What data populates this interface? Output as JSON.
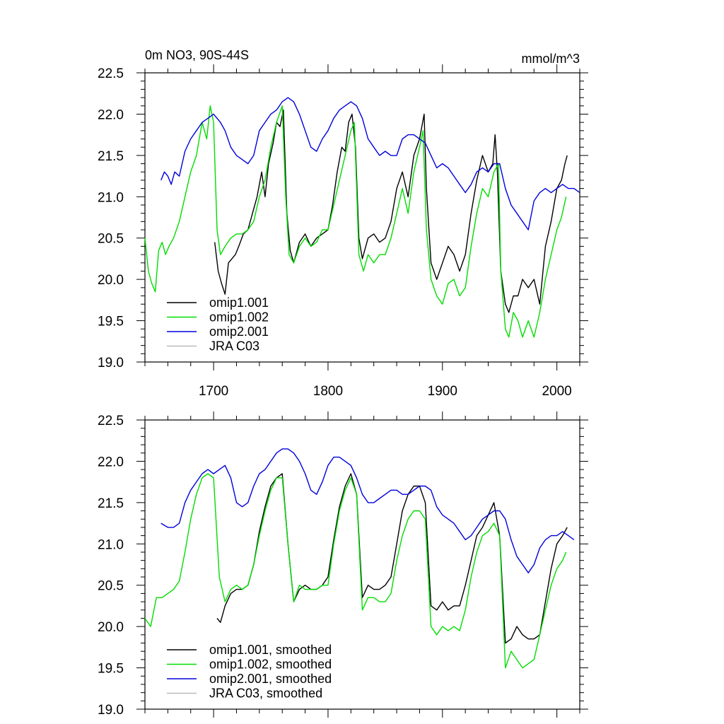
{
  "chart_data": [
    {
      "type": "line",
      "title": "0m NO3, 90S-44S",
      "title_right": "mmol/m^3",
      "xlim": [
        1640,
        2020
      ],
      "ylim": [
        19.0,
        22.5
      ],
      "xticks": [
        1700,
        1800,
        1900,
        2000
      ],
      "xtick_labels": [
        "1700",
        "1800",
        "1900",
        "2000"
      ],
      "yticks": [
        19.0,
        19.5,
        20.0,
        20.5,
        21.0,
        21.5,
        22.0,
        22.5
      ],
      "ytick_labels": [
        "19.0",
        "19.5",
        "20.0",
        "20.5",
        "21.0",
        "21.5",
        "22.0",
        "22.5"
      ],
      "legend_position": "bottom-left",
      "series": [
        {
          "name": "omip1.001",
          "color": "#000000",
          "x": [
            1701,
            1704,
            1707,
            1710,
            1713,
            1716,
            1719,
            1722,
            1726,
            1730,
            1734,
            1738,
            1742,
            1745,
            1748,
            1752,
            1755,
            1758,
            1761,
            1764,
            1767,
            1770,
            1775,
            1780,
            1785,
            1790,
            1795,
            1800,
            1804,
            1808,
            1812,
            1815,
            1818,
            1821,
            1824,
            1827,
            1830,
            1835,
            1840,
            1845,
            1850,
            1855,
            1860,
            1865,
            1870,
            1875,
            1880,
            1884,
            1886,
            1890,
            1895,
            1900,
            1905,
            1910,
            1915,
            1920,
            1925,
            1930,
            1935,
            1940,
            1944,
            1946,
            1948,
            1951,
            1955,
            1958,
            1962,
            1966,
            1970,
            1975,
            1980,
            1985,
            1990,
            1995,
            2000,
            2004,
            2007,
            2009
          ],
          "y": [
            20.45,
            20.1,
            19.95,
            19.82,
            20.2,
            20.25,
            20.3,
            20.4,
            20.55,
            20.6,
            20.8,
            21.0,
            21.3,
            21.0,
            21.4,
            21.65,
            21.9,
            21.85,
            22.05,
            20.8,
            20.35,
            20.2,
            20.45,
            20.55,
            20.4,
            20.5,
            20.55,
            20.6,
            20.9,
            21.3,
            21.6,
            21.55,
            21.9,
            22.0,
            21.6,
            20.5,
            20.25,
            20.5,
            20.55,
            20.45,
            20.5,
            20.7,
            21.1,
            21.3,
            21.0,
            21.5,
            21.7,
            22.0,
            21.1,
            20.2,
            20.0,
            20.2,
            20.4,
            20.3,
            20.1,
            20.3,
            20.8,
            21.2,
            21.5,
            21.3,
            21.4,
            21.75,
            21.3,
            20.1,
            19.7,
            19.6,
            19.8,
            19.8,
            20.0,
            19.9,
            20.0,
            19.7,
            20.4,
            20.7,
            21.1,
            21.2,
            21.4,
            21.5
          ]
        },
        {
          "name": "omip1.002",
          "color": "#00dd00",
          "x": [
            1640,
            1643,
            1646,
            1649,
            1652,
            1655,
            1658,
            1661,
            1665,
            1670,
            1675,
            1680,
            1685,
            1690,
            1694,
            1697,
            1700,
            1703,
            1706,
            1710,
            1715,
            1720,
            1725,
            1730,
            1735,
            1740,
            1745,
            1750,
            1755,
            1760,
            1763,
            1766,
            1770,
            1775,
            1780,
            1785,
            1790,
            1795,
            1800,
            1805,
            1810,
            1815,
            1820,
            1823,
            1827,
            1831,
            1835,
            1840,
            1845,
            1850,
            1855,
            1860,
            1865,
            1870,
            1875,
            1880,
            1883,
            1886,
            1890,
            1895,
            1900,
            1905,
            1910,
            1915,
            1920,
            1925,
            1930,
            1935,
            1940,
            1945,
            1949,
            1951,
            1955,
            1958,
            1962,
            1966,
            1970,
            1975,
            1980,
            1985,
            1990,
            1995,
            2000,
            2004,
            2008
          ],
          "y": [
            20.5,
            20.1,
            19.95,
            19.85,
            20.35,
            20.45,
            20.3,
            20.4,
            20.5,
            20.7,
            21.0,
            21.3,
            21.5,
            21.9,
            21.7,
            22.1,
            21.9,
            20.6,
            20.3,
            20.4,
            20.5,
            20.55,
            20.55,
            20.6,
            20.7,
            21.0,
            21.2,
            21.6,
            21.9,
            22.1,
            21.0,
            20.3,
            20.2,
            20.4,
            20.5,
            20.4,
            20.45,
            20.6,
            20.6,
            20.9,
            21.2,
            21.5,
            21.8,
            21.9,
            20.3,
            20.1,
            20.3,
            20.2,
            20.3,
            20.3,
            20.5,
            20.8,
            21.1,
            20.8,
            21.3,
            21.6,
            21.8,
            20.6,
            20.0,
            19.8,
            19.7,
            19.95,
            20.0,
            19.8,
            19.9,
            20.4,
            20.8,
            21.1,
            21.0,
            21.3,
            21.4,
            20.1,
            19.4,
            19.3,
            19.6,
            19.5,
            19.3,
            19.5,
            19.3,
            19.6,
            20.0,
            20.3,
            20.6,
            20.75,
            21.0
          ]
        },
        {
          "name": "omip2.001",
          "color": "#0000dd",
          "x": [
            1654,
            1657,
            1660,
            1663,
            1666,
            1670,
            1675,
            1680,
            1685,
            1690,
            1695,
            1700,
            1703,
            1706,
            1710,
            1715,
            1720,
            1725,
            1730,
            1735,
            1740,
            1745,
            1750,
            1755,
            1760,
            1765,
            1770,
            1775,
            1780,
            1785,
            1790,
            1795,
            1800,
            1805,
            1810,
            1815,
            1820,
            1825,
            1830,
            1835,
            1840,
            1845,
            1850,
            1855,
            1860,
            1865,
            1870,
            1875,
            1880,
            1885,
            1890,
            1895,
            1900,
            1905,
            1910,
            1915,
            1920,
            1925,
            1930,
            1935,
            1940,
            1945,
            1950,
            1955,
            1960,
            1965,
            1970,
            1975,
            1980,
            1985,
            1990,
            1995,
            2000,
            2005,
            2010,
            2015,
            2020
          ],
          "y": [
            21.2,
            21.3,
            21.25,
            21.15,
            21.3,
            21.25,
            21.55,
            21.7,
            21.8,
            21.9,
            21.95,
            22.0,
            21.95,
            21.9,
            21.8,
            21.6,
            21.5,
            21.45,
            21.4,
            21.5,
            21.8,
            21.9,
            22.0,
            22.05,
            22.15,
            22.2,
            22.15,
            22.0,
            21.8,
            21.6,
            21.55,
            21.7,
            21.8,
            21.95,
            22.05,
            22.1,
            22.15,
            22.1,
            21.95,
            21.7,
            21.6,
            21.5,
            21.55,
            21.5,
            21.5,
            21.7,
            21.75,
            21.75,
            21.7,
            21.65,
            21.5,
            21.35,
            21.4,
            21.35,
            21.25,
            21.15,
            21.05,
            21.15,
            21.3,
            21.35,
            21.3,
            21.4,
            21.4,
            21.1,
            20.9,
            20.8,
            20.7,
            20.6,
            20.95,
            21.05,
            21.1,
            21.05,
            21.1,
            21.15,
            21.1,
            21.1,
            21.05
          ]
        },
        {
          "name": "JRA C03",
          "color": "#bbbbbb",
          "x": [],
          "y": []
        }
      ]
    },
    {
      "type": "line",
      "xlim": [
        1640,
        2020
      ],
      "ylim": [
        19.0,
        22.5
      ],
      "xticks": [
        1700,
        1800,
        1900,
        2000
      ],
      "yticks": [
        19.0,
        19.5,
        20.0,
        20.5,
        21.0,
        21.5,
        22.0,
        22.5
      ],
      "ytick_labels": [
        "19.0",
        "19.5",
        "20.0",
        "20.5",
        "21.0",
        "21.5",
        "22.0",
        "22.5"
      ],
      "legend_position": "bottom-left",
      "series": [
        {
          "name": "omip1.001, smoothed",
          "color": "#000000",
          "x": [
            1703,
            1706,
            1710,
            1715,
            1720,
            1725,
            1730,
            1735,
            1740,
            1745,
            1750,
            1755,
            1760,
            1765,
            1770,
            1775,
            1780,
            1785,
            1790,
            1795,
            1800,
            1805,
            1810,
            1815,
            1820,
            1825,
            1830,
            1835,
            1840,
            1845,
            1850,
            1855,
            1860,
            1865,
            1870,
            1875,
            1880,
            1885,
            1890,
            1895,
            1900,
            1905,
            1910,
            1915,
            1920,
            1925,
            1930,
            1935,
            1940,
            1945,
            1950,
            1955,
            1960,
            1965,
            1970,
            1975,
            1980,
            1985,
            1990,
            1995,
            2000,
            2005,
            2009
          ],
          "y": [
            20.1,
            20.05,
            20.25,
            20.4,
            20.45,
            20.45,
            20.5,
            20.75,
            21.15,
            21.45,
            21.7,
            21.8,
            21.85,
            21.0,
            20.3,
            20.45,
            20.5,
            20.45,
            20.45,
            20.5,
            20.6,
            21.05,
            21.45,
            21.7,
            21.85,
            21.6,
            20.35,
            20.5,
            20.45,
            20.45,
            20.5,
            20.6,
            21.0,
            21.4,
            21.6,
            21.7,
            21.7,
            21.5,
            20.25,
            20.2,
            20.3,
            20.2,
            20.25,
            20.25,
            20.5,
            20.8,
            21.1,
            21.2,
            21.35,
            21.5,
            21.1,
            19.8,
            19.85,
            20.0,
            19.9,
            19.85,
            19.85,
            19.9,
            20.3,
            20.7,
            21.0,
            21.1,
            21.2
          ]
        },
        {
          "name": "omip1.002, smoothed",
          "color": "#00dd00",
          "x": [
            1640,
            1645,
            1650,
            1655,
            1660,
            1665,
            1670,
            1675,
            1680,
            1685,
            1690,
            1695,
            1700,
            1705,
            1710,
            1715,
            1720,
            1725,
            1730,
            1735,
            1740,
            1745,
            1750,
            1755,
            1760,
            1765,
            1770,
            1775,
            1780,
            1785,
            1790,
            1795,
            1800,
            1805,
            1810,
            1815,
            1820,
            1825,
            1830,
            1835,
            1840,
            1845,
            1850,
            1855,
            1860,
            1865,
            1870,
            1875,
            1880,
            1885,
            1890,
            1895,
            1900,
            1905,
            1910,
            1915,
            1920,
            1925,
            1930,
            1935,
            1940,
            1945,
            1950,
            1955,
            1960,
            1965,
            1970,
            1975,
            1980,
            1985,
            1990,
            1995,
            2000,
            2005,
            2008
          ],
          "y": [
            20.1,
            20.0,
            20.35,
            20.35,
            20.4,
            20.45,
            20.55,
            20.9,
            21.3,
            21.6,
            21.8,
            21.85,
            21.8,
            20.6,
            20.3,
            20.45,
            20.5,
            20.45,
            20.5,
            20.75,
            21.1,
            21.4,
            21.65,
            21.8,
            21.8,
            21.0,
            20.3,
            20.5,
            20.45,
            20.45,
            20.45,
            20.5,
            20.5,
            21.0,
            21.4,
            21.65,
            21.8,
            21.6,
            20.2,
            20.35,
            20.35,
            20.3,
            20.3,
            20.4,
            20.8,
            21.1,
            21.3,
            21.4,
            21.4,
            21.3,
            20.0,
            19.9,
            20.0,
            19.95,
            20.0,
            19.95,
            20.2,
            20.6,
            20.9,
            21.1,
            21.15,
            21.25,
            21.1,
            19.5,
            19.7,
            19.6,
            19.5,
            19.55,
            19.6,
            19.9,
            20.2,
            20.5,
            20.7,
            20.8,
            20.9
          ]
        },
        {
          "name": "omip2.001, smoothed",
          "color": "#0000dd",
          "x": [
            1654,
            1660,
            1665,
            1670,
            1675,
            1680,
            1685,
            1690,
            1695,
            1700,
            1705,
            1710,
            1715,
            1720,
            1725,
            1730,
            1735,
            1740,
            1745,
            1750,
            1755,
            1760,
            1765,
            1770,
            1775,
            1780,
            1785,
            1790,
            1795,
            1800,
            1805,
            1810,
            1815,
            1820,
            1825,
            1830,
            1835,
            1840,
            1845,
            1850,
            1855,
            1860,
            1865,
            1870,
            1875,
            1880,
            1885,
            1890,
            1895,
            1900,
            1905,
            1910,
            1915,
            1920,
            1925,
            1930,
            1935,
            1940,
            1945,
            1950,
            1955,
            1960,
            1965,
            1970,
            1975,
            1980,
            1985,
            1990,
            1995,
            2000,
            2005,
            2010,
            2015
          ],
          "y": [
            21.25,
            21.2,
            21.2,
            21.25,
            21.5,
            21.65,
            21.75,
            21.85,
            21.9,
            21.85,
            21.9,
            21.95,
            21.8,
            21.5,
            21.45,
            21.5,
            21.7,
            21.85,
            21.9,
            22.0,
            22.1,
            22.15,
            22.15,
            22.1,
            22.0,
            21.85,
            21.65,
            21.6,
            21.75,
            21.95,
            22.05,
            22.05,
            22.0,
            21.95,
            21.8,
            21.6,
            21.5,
            21.5,
            21.55,
            21.6,
            21.65,
            21.65,
            21.6,
            21.6,
            21.65,
            21.7,
            21.7,
            21.65,
            21.45,
            21.35,
            21.3,
            21.25,
            21.15,
            21.05,
            21.1,
            21.2,
            21.3,
            21.35,
            21.4,
            21.4,
            21.3,
            21.05,
            20.85,
            20.75,
            20.65,
            20.75,
            20.95,
            21.05,
            21.1,
            21.1,
            21.15,
            21.1,
            21.05
          ]
        },
        {
          "name": "JRA C03, smoothed",
          "color": "#bbbbbb",
          "x": [],
          "y": []
        }
      ]
    }
  ]
}
